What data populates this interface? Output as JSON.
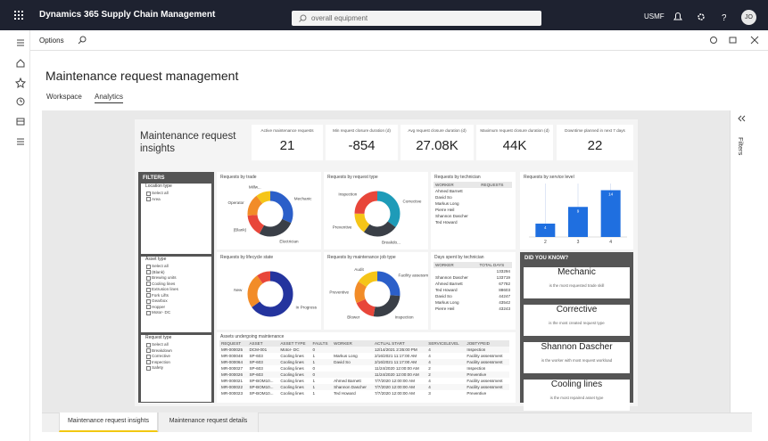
{
  "app": {
    "title": "Dynamics 365 Supply Chain Management",
    "search": "overall equipment",
    "company": "USMF",
    "user": "JO"
  },
  "toolbar": {
    "options": "Options"
  },
  "page": {
    "title": "Maintenance request management",
    "tabs": [
      "Workspace",
      "Analytics"
    ]
  },
  "report": {
    "title": "Maintenance request insights",
    "kpis": [
      {
        "label": "Active maintenance requests",
        "value": "21"
      },
      {
        "label": "Min request closure duration (d)",
        "value": "-854"
      },
      {
        "label": "Avg request closure duration (d)",
        "value": "27.08K"
      },
      {
        "label": "Maximum request closure duration (d)",
        "value": "44K"
      },
      {
        "label": "Downtime planned in next 7 days",
        "value": "22"
      }
    ],
    "filters": {
      "title": "FILTERS",
      "groups": [
        {
          "title": "Location type",
          "items": [
            "Select all",
            "Area"
          ]
        },
        {
          "title": "Asset type",
          "items": [
            "Select all",
            "(Blank)",
            "Brewing units",
            "Cooling lines",
            "Extrusion lines",
            "Fork Lifts",
            "Gearbox",
            "Hopper",
            "Motor- DC"
          ]
        },
        {
          "title": "Request type",
          "items": [
            "Select all",
            "Breakdown",
            "Corrective",
            "Inspection",
            "Safety"
          ]
        }
      ]
    },
    "donuts": [
      {
        "title": "Requests by trade",
        "slices": [
          {
            "name": "Mechanic",
            "color": "#2b5fc9",
            "value": 6
          },
          {
            "name": "Electrician",
            "color": "#3a3f47",
            "value": 5
          },
          {
            "name": "(Blank)",
            "color": "#e8463a",
            "value": 3
          },
          {
            "name": "Operator",
            "color": "#f28c28",
            "value": 3
          },
          {
            "name": "Millw...",
            "color": "#f5c518",
            "value": 2
          }
        ]
      },
      {
        "title": "Requests by request type",
        "slices": [
          {
            "name": "Corrective",
            "color": "#1e9bb8",
            "value": 7
          },
          {
            "name": "Breakdo...",
            "color": "#3a3f47",
            "value": 5
          },
          {
            "name": "Preventive",
            "color": "#f5c518",
            "value": 3
          },
          {
            "name": "Inspection",
            "color": "#e8463a",
            "value": 5
          }
        ]
      },
      {
        "title": "Requests by lifecycle state",
        "slices": [
          {
            "name": "In Progress",
            "color": "#24349e",
            "value": 13
          },
          {
            "name": "New",
            "color": "#f28c28",
            "value": 5
          },
          {
            "name": "",
            "color": "#e8463a",
            "value": 2
          }
        ]
      },
      {
        "title": "Requests by maintenance job type",
        "slices": [
          {
            "name": "Facility assessm...",
            "color": "#2b5fc9",
            "value": 5
          },
          {
            "name": "Inspection",
            "color": "#3a3f47",
            "value": 5
          },
          {
            "name": "Blower",
            "color": "#e8463a",
            "value": 3
          },
          {
            "name": "Preventive",
            "color": "#f28c28",
            "value": 3
          },
          {
            "name": "Audit",
            "color": "#f5c518",
            "value": 3
          }
        ]
      }
    ],
    "technician_table": {
      "title": "Requests by technician",
      "columns": [
        "WORKER",
        "REQUESTS"
      ],
      "rows": [
        "Ahmed Barnett",
        "David So",
        "Markus Long",
        "Pierre Heil",
        "Shannon Dascher",
        "Ted Howard"
      ]
    },
    "service_chart": {
      "type": "bar",
      "title": "Requests by service level",
      "categories": [
        "2",
        "3",
        "4"
      ],
      "values": [
        4,
        9,
        14
      ],
      "ylim": [
        0,
        16
      ],
      "color": "#1f6fe0"
    },
    "days_table": {
      "title": "Days spent by technician",
      "columns": [
        "WORKER",
        "TOTAL DAYS"
      ],
      "rows": [
        {
          "days": "133294"
        },
        {
          "worker": "Shannon Dascher",
          "days": "133719"
        },
        {
          "worker": "Ahmed Barnett",
          "days": "67782"
        },
        {
          "worker": "Ted Howard",
          "days": "88603"
        },
        {
          "worker": "David So",
          "days": "44247"
        },
        {
          "worker": "Markus Long",
          "days": "43542"
        },
        {
          "worker": "Pierre Heil",
          "days": "43243"
        }
      ]
    },
    "assets_table": {
      "title": "Assets undergoing maintenance",
      "columns": [
        "REQUEST",
        "ASSET",
        "ASSET TYPE",
        "FAULTS",
        "WORKER",
        "ACTUAL START",
        "SERVICELEVEL",
        "JOBTYPEID"
      ],
      "rows": [
        [
          "MR-000025",
          "DCM-001",
          "Motor- DC",
          "0",
          null,
          "12/14/2021 2:35:00 PM",
          "4",
          "Inspection"
        ],
        [
          "MR-000048",
          "SP-603",
          "Cooling lines",
          "1",
          "Markus Long",
          "2/16/2021 11:17:00 AM",
          "4",
          "Facility assessment"
        ],
        [
          "MR-000064",
          "SP-603",
          "Cooling lines",
          "1",
          "David So",
          "2/16/2021 11:17:00 AM",
          "4",
          "Facility assessment"
        ],
        [
          "MR-000027",
          "SP-603",
          "Cooling lines",
          "0",
          null,
          "11/24/2020 12:00:00 AM",
          "2",
          "Inspection"
        ],
        [
          "MR-000026",
          "SP-603",
          "Cooling lines",
          "0",
          null,
          "11/24/2020 12:00:00 AM",
          "2",
          "Preventive"
        ],
        [
          "MR-000021",
          "SP-BOM10...",
          "Cooling lines",
          "1",
          "Ahmed Barnett",
          "7/7/2020 12:00:00 AM",
          "4",
          "Facility assessment"
        ],
        [
          "MR-000022",
          "SP-BOM10...",
          "Cooling lines",
          "1",
          "Shannon Dascher",
          "7/7/2020 12:00:00 AM",
          "4",
          "Facility assessment"
        ],
        [
          "MR-000023",
          "SP-BOM10...",
          "Cooling lines",
          "1",
          "Ted Howard",
          "7/7/2020 12:00:00 AM",
          "3",
          "Preventive"
        ]
      ]
    },
    "did_you_know": {
      "title": "DID YOU KNOW?",
      "facts": [
        {
          "value": "Mechanic",
          "caption": "is the most requested trade skill"
        },
        {
          "value": "Corrective",
          "caption": "is the most created request type"
        },
        {
          "value": "Shannon Dascher",
          "caption": "is the worker with most request workload"
        },
        {
          "value": "Cooling lines",
          "caption": "is the most repaired asset type"
        }
      ]
    },
    "pages": [
      "Maintenance request insights",
      "Maintenance request details"
    ],
    "filters_pane": "Filters"
  }
}
